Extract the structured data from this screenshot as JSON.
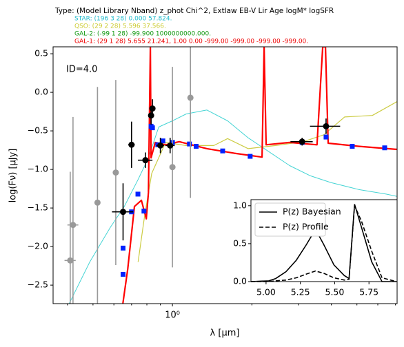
{
  "chart_data": [
    {
      "type": "sed",
      "title": "Type: (Model Library Nband) z_phot  Chi^2,  Extlaw  EB-V  Lir  Age  logM*  logSFR",
      "header_lines": [
        {
          "text": "STAR: (196 3 28)  0.000  57.824.",
          "color": "#22bbcc"
        },
        {
          "text": "QSO: (29 2 28)  5.596  37.566.",
          "color": "#cccc33"
        },
        {
          "text": "GAL-2: (-99 1 28)  -99.900  1000000000.000.",
          "color": "#119911"
        },
        {
          "text": "GAL-1: (29 1 28)  5.655  21.241,  1.00   0.00   -999.00   -999.00   -999.00   -999.00.",
          "color": "#ee0000"
        }
      ],
      "annotation": "ID=4.0",
      "xlabel": "λ [μm]",
      "ylabel": "log(Fν) [μJy]",
      "xscale": "log",
      "xlim": [
        0.353,
        7.1
      ],
      "ylim": [
        -2.74,
        0.59
      ],
      "xticks": [
        {
          "value": 1,
          "label": "10⁰"
        }
      ],
      "xminorticks": [
        0.4,
        0.5,
        0.6,
        0.7,
        0.8,
        0.9,
        2,
        3,
        4,
        5,
        6,
        7
      ],
      "yticks": [
        {
          "value": 0.5,
          "label": "0.5"
        },
        {
          "value": 0,
          "label": "0.0"
        },
        {
          "value": -0.5,
          "label": "−0.5"
        },
        {
          "value": -1,
          "label": "−1.0"
        },
        {
          "value": -1.5,
          "label": "−1.5"
        },
        {
          "value": -2,
          "label": "−2.0"
        },
        {
          "value": -2.5,
          "label": "−2.5"
        }
      ],
      "templates": [
        {
          "color": "#44d4d4",
          "width": 1,
          "x": [
            0.406,
            0.486,
            0.582,
            0.657,
            0.741,
            0.811,
            0.887,
            1.0,
            1.128,
            1.351,
            1.618,
            1.937,
            2.32,
            2.78,
            3.32,
            3.98,
            5.07,
            6.45,
            7.1
          ],
          "values": [
            -2.74,
            -2.2,
            -1.75,
            -1.48,
            -1.13,
            -0.85,
            -0.45,
            -0.37,
            -0.28,
            -0.23,
            -0.37,
            -0.59,
            -0.77,
            -0.95,
            -1.08,
            -1.17,
            -1.26,
            -1.32,
            -1.35
          ]
        },
        {
          "color": "#cccc44",
          "width": 1.2,
          "x": [
            0.741,
            0.786,
            0.835,
            0.942,
            1.128,
            1.434,
            1.618,
            1.937,
            2.46,
            3.13,
            3.75,
            4.49,
            5.72,
            7.1
          ],
          "values": [
            -2.2,
            -1.58,
            -1.05,
            -0.65,
            -0.69,
            -0.69,
            -0.6,
            -0.73,
            -0.69,
            -0.64,
            -0.55,
            -0.32,
            -0.3,
            -0.12
          ]
        },
        {
          "color": "#ff0000",
          "width": 2.2,
          "x": [
            0.649,
            0.677,
            0.718,
            0.763,
            0.796,
            0.811,
            0.825,
            0.83,
            0.861,
            0.942,
            1.062,
            1.351,
            1.718,
            2.185,
            2.225,
            2.265,
            2.78,
            3.53,
            3.71,
            3.8,
            3.89,
            5.07,
            7.1
          ],
          "values": [
            -2.74,
            -2.29,
            -1.48,
            -1.4,
            -1.64,
            -1.3,
            0.59,
            -0.85,
            -0.65,
            -0.68,
            -0.64,
            -0.73,
            -0.79,
            -0.84,
            0.59,
            -0.68,
            -0.65,
            -0.68,
            0.59,
            0.59,
            -0.66,
            -0.7,
            -0.74
          ]
        }
      ],
      "model_photometry": {
        "color": "#0022ff",
        "x": [
          0.65,
          0.65,
          0.7,
          0.74,
          0.78,
          0.83,
          0.84,
          0.88,
          0.92,
          1.0,
          1.16,
          1.23,
          1.55,
          1.97,
          3.1,
          3.82,
          4.8,
          6.37
        ],
        "values": [
          -2.36,
          -2.02,
          -1.55,
          -1.32,
          -1.54,
          -0.44,
          -0.46,
          -0.68,
          -0.63,
          -0.65,
          -0.67,
          -0.7,
          -0.76,
          -0.83,
          -0.65,
          -0.58,
          -0.7,
          -0.72
        ]
      },
      "photometry_unused": {
        "color": "#999999",
        "x": [
          0.41,
          0.42,
          0.52,
          0.61,
          1.0,
          1.17
        ],
        "values": [
          -2.18,
          -1.72,
          -1.43,
          -1.04,
          -0.97,
          -0.07
        ],
        "yerr": [
          1.15,
          1.4,
          1.5,
          1.2,
          1.3,
          1.3
        ],
        "xerr": [
          0.02,
          0.02,
          0,
          0,
          0,
          0
        ]
      },
      "photometry": {
        "color": "#000000",
        "x": [
          0.65,
          0.7,
          0.79,
          0.83,
          0.84,
          0.9,
          0.98,
          3.1,
          3.82
        ],
        "values": [
          -1.55,
          -0.68,
          -0.88,
          -0.3,
          -0.21,
          -0.69,
          -0.69,
          -0.64,
          -0.44
        ],
        "yerr": [
          0.37,
          0.3,
          0.1,
          0.12,
          0.12,
          0.1,
          0.1,
          0.05,
          0.1
        ],
        "xerr": [
          0.06,
          0.02,
          0.05,
          0.01,
          0.01,
          0.03,
          0.04,
          0.3,
          0.5
        ]
      }
    },
    {
      "type": "line",
      "xlim": [
        4.89,
        5.955
      ],
      "ylim": [
        0,
        1.08
      ],
      "xticks": [
        {
          "value": 5,
          "label": "5.00"
        },
        {
          "value": 5.25,
          "label": "5.25"
        },
        {
          "value": 5.5,
          "label": "5.50"
        },
        {
          "value": 5.75,
          "label": "5.75"
        }
      ],
      "yticks": [
        {
          "value": 0,
          "label": "0.0"
        },
        {
          "value": 0.5,
          "label": "0.5"
        },
        {
          "value": 1,
          "label": "1.0"
        }
      ],
      "legend": "upper-left",
      "x": [
        4.89,
        5.02,
        5.07,
        5.145,
        5.22,
        5.295,
        5.36,
        5.42,
        5.495,
        5.57,
        5.605,
        5.645,
        5.695,
        5.77,
        5.845,
        5.95
      ],
      "series": [
        {
          "name": "P(z) Bayesian",
          "color": "#000000",
          "dash": false,
          "values": [
            0,
            0.01,
            0.04,
            0.13,
            0.28,
            0.49,
            0.69,
            0.49,
            0.22,
            0.08,
            0.04,
            1.02,
            0.72,
            0.26,
            0,
            0
          ]
        },
        {
          "name": "P(z) Profile",
          "color": "#000000",
          "dash": true,
          "values": [
            0,
            0,
            0.01,
            0.02,
            0.05,
            0.1,
            0.14,
            0.11,
            0.05,
            0.02,
            0.03,
            1.0,
            0.8,
            0.4,
            0.05,
            0
          ]
        }
      ]
    }
  ]
}
